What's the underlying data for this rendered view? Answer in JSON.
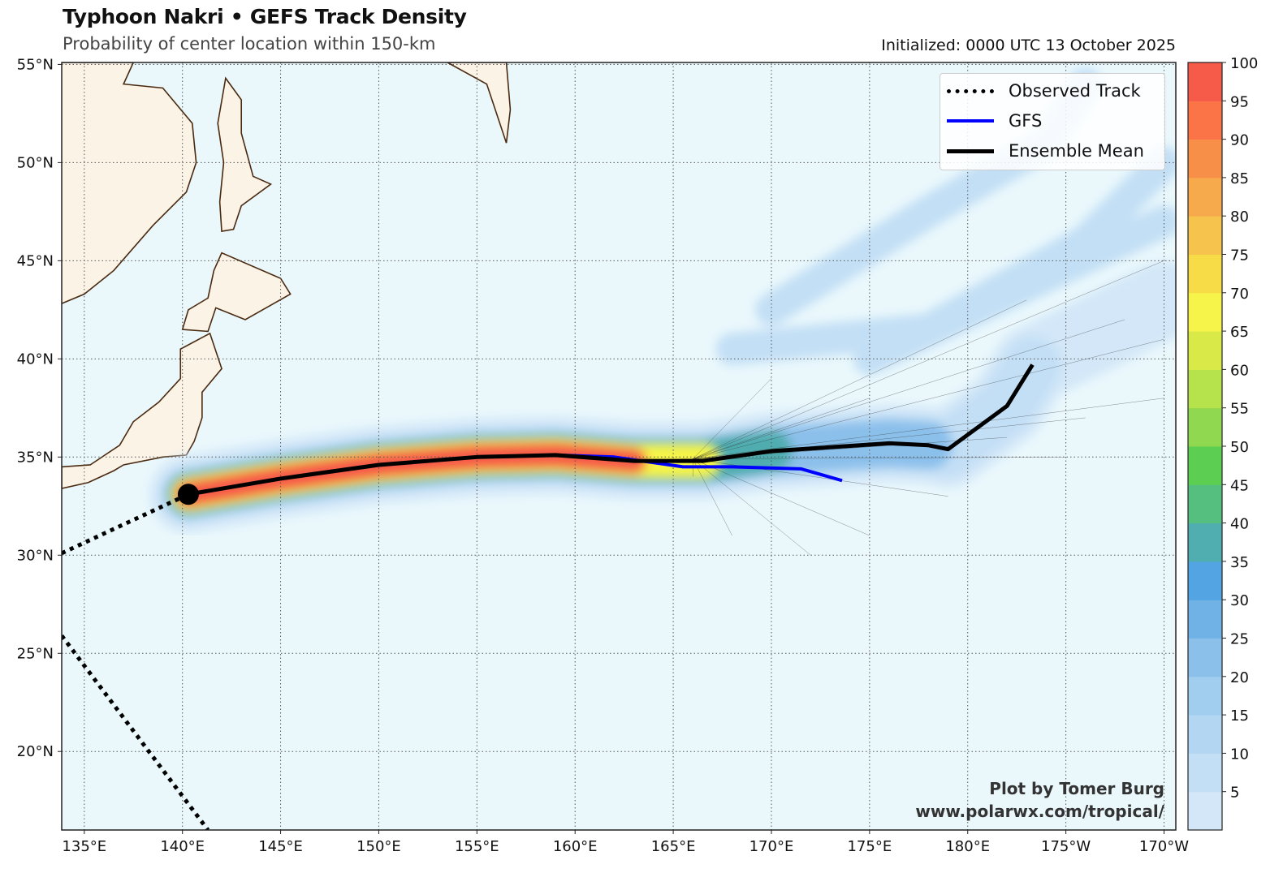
{
  "header": {
    "title": "Typhoon Nakri • GEFS Track Density",
    "subtitle": "Probability of center location within 150-km",
    "initialized": "Initialized: 0000 UTC 13 October 2025"
  },
  "legend": {
    "observed": "Observed Track",
    "gfs": "GFS",
    "mean": "Ensemble Mean"
  },
  "credits": {
    "author": "Plot by Tomer Burg",
    "url": "www.polarwx.com/tropical/"
  },
  "colors": {
    "ocean": "#eaf8fc",
    "land": "#fbf3e6",
    "coast": "#4a2a10",
    "gfs": "#0000ff",
    "mean": "#000000",
    "colorbar": [
      "#d3e7f8",
      "#c3dff5",
      "#b3d7f2",
      "#a1cdef",
      "#8bc0eb",
      "#70b1e6",
      "#52a5e2",
      "#50adb0",
      "#55bf80",
      "#5cce52",
      "#8fd84f",
      "#b6e24b",
      "#d9ea48",
      "#f6f44a",
      "#f7dc48",
      "#f6c34d",
      "#f7aa4c",
      "#f88f48",
      "#fa7447",
      "#f65a48"
    ]
  },
  "chart_data": {
    "type": "map",
    "title": "Typhoon Nakri • GEFS Track Density",
    "x_ticks": [
      "135°E",
      "140°E",
      "145°E",
      "150°E",
      "155°E",
      "160°E",
      "165°E",
      "170°E",
      "175°E",
      "180°E",
      "175°W",
      "170°W"
    ],
    "x_tick_values": [
      135,
      140,
      145,
      150,
      155,
      160,
      165,
      170,
      175,
      180,
      185,
      190
    ],
    "y_ticks": [
      "55°N",
      "50°N",
      "45°N",
      "40°N",
      "35°N",
      "30°N",
      "25°N",
      "20°N"
    ],
    "y_tick_values": [
      55,
      50,
      45,
      40,
      35,
      30,
      25,
      20
    ],
    "lon_range": [
      133.85,
      190.6
    ],
    "lat_range": [
      16.0,
      55.1
    ],
    "colorbar": {
      "ticks": [
        "5",
        "10",
        "15",
        "20",
        "25",
        "30",
        "35",
        "40",
        "45",
        "50",
        "55",
        "60",
        "65",
        "70",
        "75",
        "80",
        "85",
        "90",
        "95",
        "100"
      ],
      "range": [
        0,
        100
      ],
      "step": 5
    },
    "series": [
      {
        "name": "Observed Track",
        "style": "dotted",
        "points": [
          [
            133.85,
            30.1
          ],
          [
            140.3,
            33.1
          ]
        ]
      },
      {
        "name": "Observed Track (other)",
        "style": "dotted",
        "points": [
          [
            133.85,
            25.9
          ],
          [
            141.3,
            16.0
          ]
        ]
      },
      {
        "name": "GFS",
        "points": [
          [
            140.3,
            33.1
          ],
          [
            145,
            33.9
          ],
          [
            150,
            34.6
          ],
          [
            155,
            35.0
          ],
          [
            159,
            35.1
          ],
          [
            162,
            35.0
          ],
          [
            165.5,
            34.5
          ],
          [
            168,
            34.5
          ],
          [
            171.5,
            34.4
          ],
          [
            173.6,
            33.8
          ]
        ]
      },
      {
        "name": "Ensemble Mean",
        "points": [
          [
            140.3,
            33.1
          ],
          [
            145,
            33.9
          ],
          [
            150,
            34.6
          ],
          [
            155,
            35.0
          ],
          [
            159,
            35.1
          ],
          [
            163,
            34.8
          ],
          [
            166.5,
            34.8
          ],
          [
            170,
            35.3
          ],
          [
            176,
            35.7
          ],
          [
            178,
            35.6
          ],
          [
            179,
            35.4
          ],
          [
            182,
            37.6
          ],
          [
            183.3,
            39.7
          ]
        ]
      }
    ],
    "current_position": [
      140.3,
      33.1
    ]
  }
}
